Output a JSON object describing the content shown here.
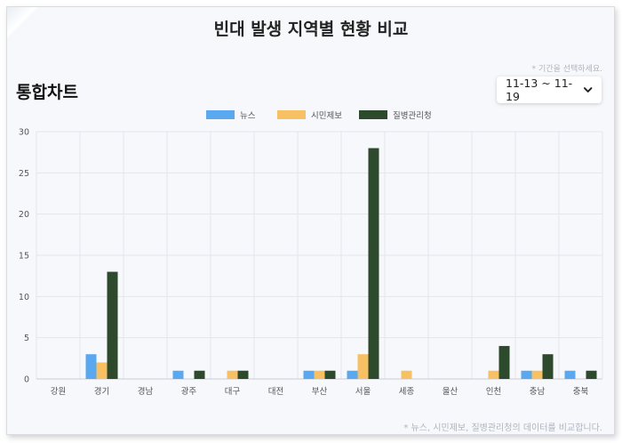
{
  "header": {
    "title": "빈대 발생 지역별 현황 비교"
  },
  "hint": "* 기간을 선택하세요.",
  "section": {
    "title": "통합차트"
  },
  "period_select": {
    "value": "11-13 ~ 11-19",
    "icon": "chevron-down-icon"
  },
  "footnote": "* 뉴스, 시민제보, 질병관리청의 데이터를 비교합니다.",
  "chart_data": {
    "type": "bar",
    "categories": [
      "강원",
      "경기",
      "경남",
      "광주",
      "대구",
      "대전",
      "부산",
      "서울",
      "세종",
      "울산",
      "인천",
      "충남",
      "충북"
    ],
    "series": [
      {
        "name": "뉴스",
        "color": "#5aa9f0",
        "values": [
          0,
          3,
          0,
          1,
          0,
          0,
          1,
          1,
          0,
          0,
          0,
          1,
          1
        ]
      },
      {
        "name": "시민제보",
        "color": "#f7c063",
        "values": [
          0,
          2,
          0,
          0,
          1,
          0,
          1,
          3,
          1,
          0,
          1,
          1,
          0
        ]
      },
      {
        "name": "질병관리청",
        "color": "#2e4a2c",
        "values": [
          0,
          13,
          0,
          1,
          1,
          0,
          1,
          28,
          0,
          0,
          4,
          3,
          1
        ]
      }
    ],
    "ylim": [
      0,
      30
    ],
    "yticks": [
      0,
      5,
      10,
      15,
      20,
      25,
      30
    ],
    "grid": true,
    "legend": "top-center"
  }
}
